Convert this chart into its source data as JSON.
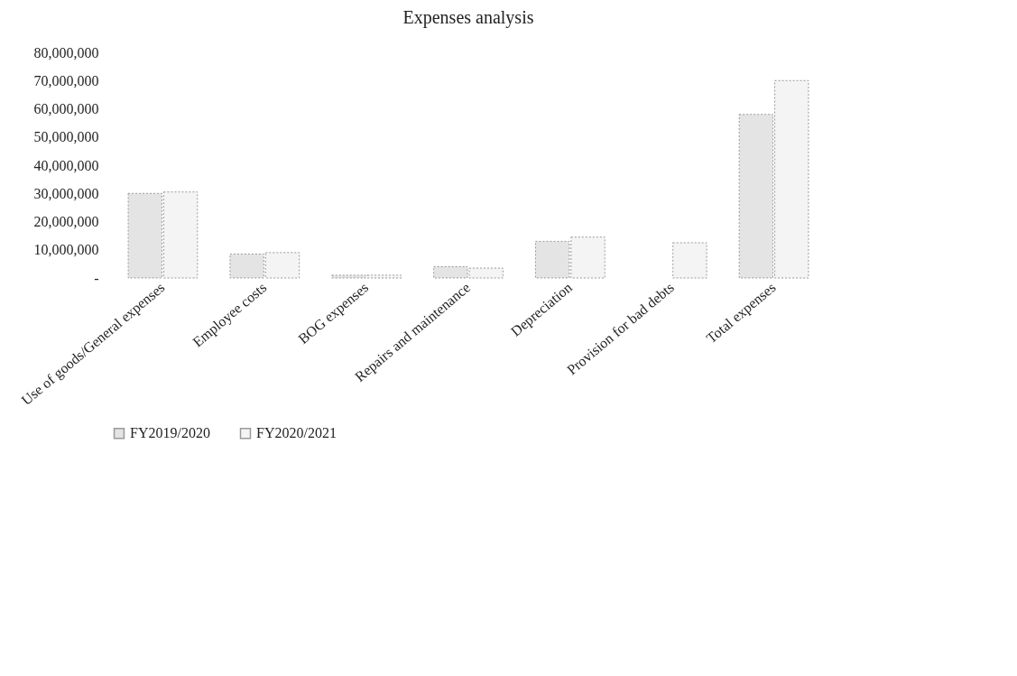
{
  "chart_data": {
    "type": "bar",
    "title": "Expenses analysis",
    "categories": [
      "Use of goods/General expenses",
      "Employee costs",
      "BOG expenses",
      "Repairs and maintenance",
      "Depreciation",
      "Provision for bad debts",
      "Total expenses"
    ],
    "series": [
      {
        "name": "FY2019/2020",
        "color": "#e4e4e4",
        "values": [
          30000000,
          8500000,
          1000000,
          4000000,
          13000000,
          null,
          58000000
        ]
      },
      {
        "name": "FY2020/2021",
        "color": "#f4f4f4",
        "values": [
          30500000,
          9000000,
          1000000,
          3500000,
          14500000,
          12500000,
          70000000
        ]
      }
    ],
    "ylim": [
      0,
      80000000
    ],
    "yticks": [
      {
        "value": 0,
        "label": "-"
      },
      {
        "value": 10000000,
        "label": "10,000,000"
      },
      {
        "value": 20000000,
        "label": "20,000,000"
      },
      {
        "value": 30000000,
        "label": "30,000,000"
      },
      {
        "value": 40000000,
        "label": "40,000,000"
      },
      {
        "value": 50000000,
        "label": "50,000,000"
      },
      {
        "value": 60000000,
        "label": "60,000,000"
      },
      {
        "value": 70000000,
        "label": "70,000,000"
      },
      {
        "value": 80000000,
        "label": "80,000,000"
      }
    ],
    "grid": false,
    "legend": "bottom"
  }
}
